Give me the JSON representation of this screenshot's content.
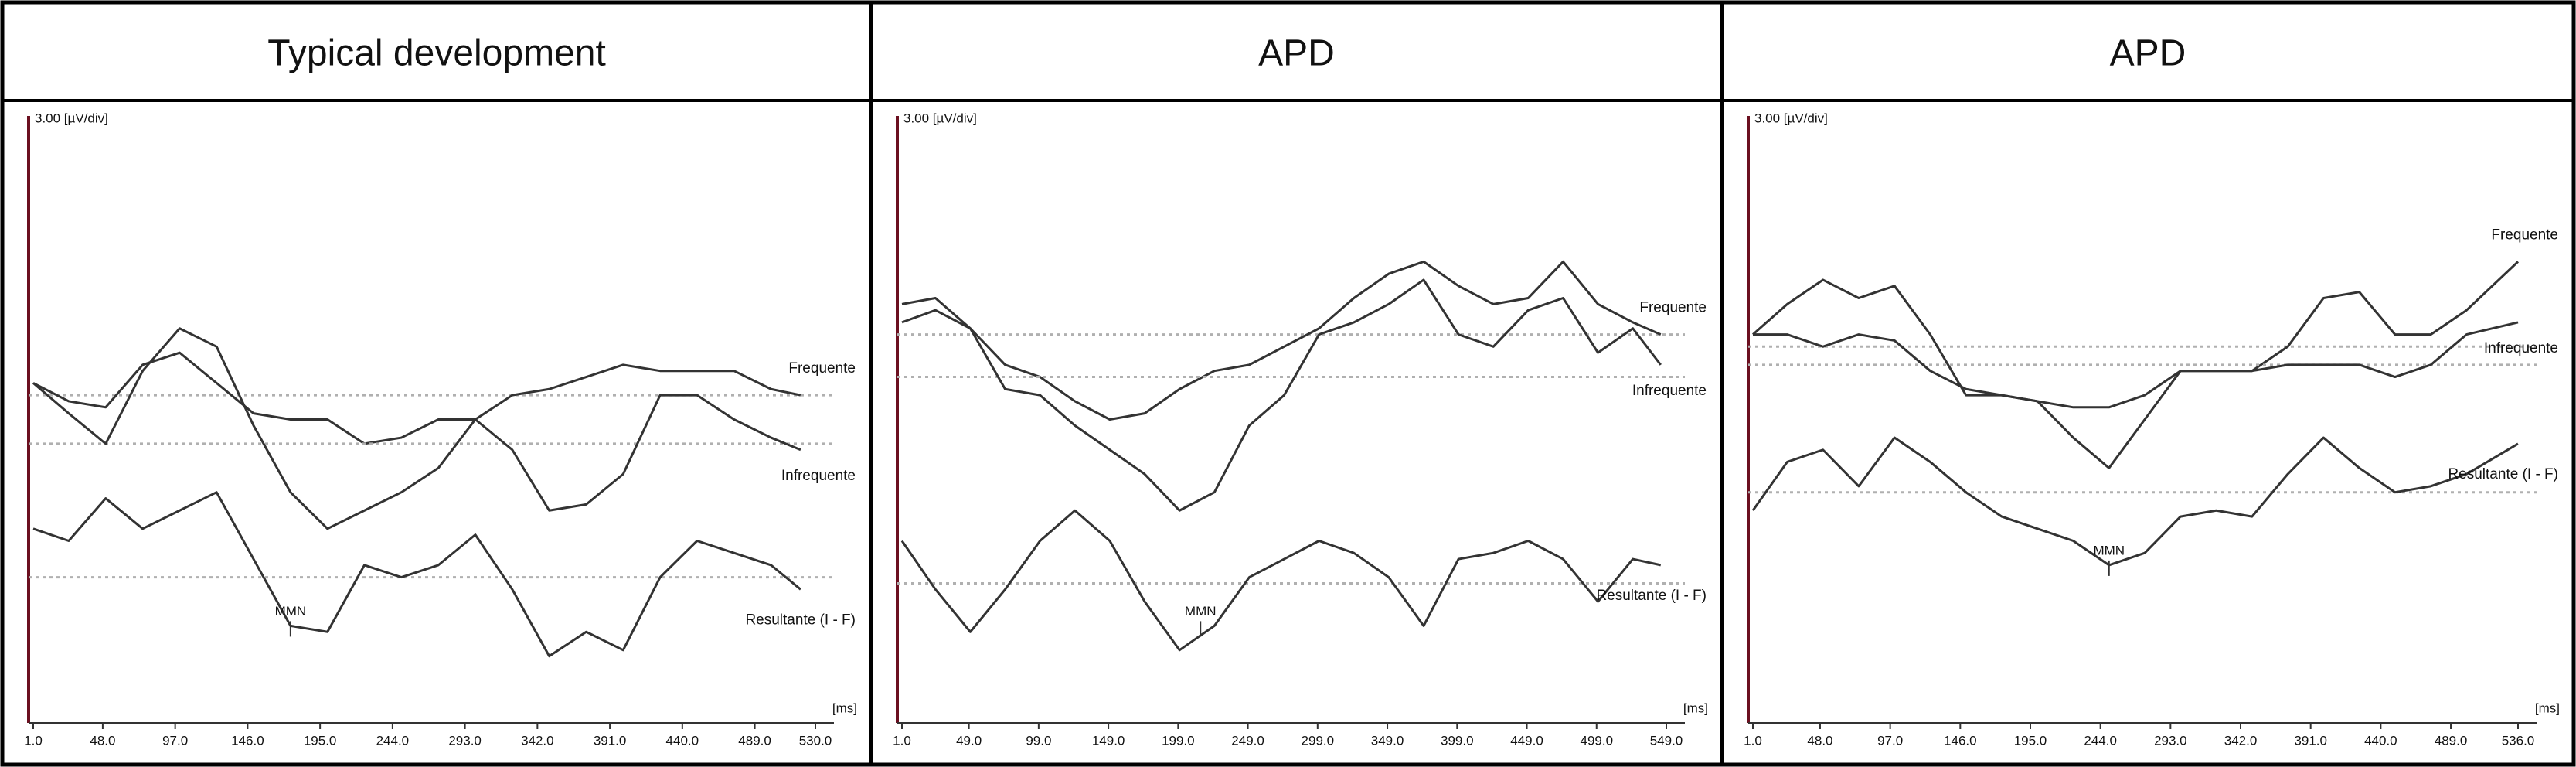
{
  "chart_data": [
    {
      "type": "line",
      "title": "Typical development",
      "y_unit": "3.00 [µV/div]",
      "x_unit": "[ms]",
      "x": [
        1,
        25,
        50,
        75,
        100,
        125,
        150,
        175,
        200,
        225,
        250,
        275,
        300,
        325,
        350,
        375,
        400,
        425,
        450,
        475,
        500,
        520
      ],
      "xlim": [
        1,
        530
      ],
      "xticks": [
        {
          "value": 1,
          "label": "1.0"
        },
        {
          "value": 48,
          "label": "48.0"
        },
        {
          "value": 97,
          "label": "97.0"
        },
        {
          "value": 146,
          "label": "146.0"
        },
        {
          "value": 195,
          "label": "195.0"
        },
        {
          "value": 244,
          "label": "244.0"
        },
        {
          "value": 293,
          "label": "293.0"
        },
        {
          "value": 342,
          "label": "342.0"
        },
        {
          "value": 391,
          "label": "391.0"
        },
        {
          "value": 440,
          "label": "440.0"
        },
        {
          "value": 489,
          "label": "489.0"
        },
        {
          "value": 530,
          "label": "530.0"
        }
      ],
      "ylim": [
        0,
        10
      ],
      "series": [
        {
          "name": "Frequente",
          "color": "#333333",
          "baseline": 5.4,
          "values": [
            5.6,
            5.3,
            5.2,
            5.9,
            6.1,
            5.6,
            5.1,
            5.0,
            5.0,
            4.6,
            4.7,
            5.0,
            5.0,
            5.4,
            5.5,
            5.7,
            5.9,
            5.8,
            5.8,
            5.8,
            5.5,
            5.4
          ]
        },
        {
          "name": "Infrequente",
          "color": "#333333",
          "baseline": 4.6,
          "values": [
            5.6,
            5.1,
            4.6,
            5.8,
            6.5,
            6.2,
            4.9,
            3.8,
            3.2,
            3.5,
            3.8,
            4.2,
            5.0,
            4.5,
            3.5,
            3.6,
            4.1,
            5.4,
            5.4,
            5.0,
            4.7,
            4.5
          ]
        },
        {
          "name": "Resultante (I - F)",
          "color": "#333333",
          "baseline": 2.4,
          "values": [
            3.2,
            3.0,
            3.7,
            3.2,
            3.5,
            3.8,
            2.7,
            1.6,
            1.5,
            2.6,
            2.4,
            2.6,
            3.1,
            2.2,
            1.1,
            1.5,
            1.2,
            2.4,
            3.0,
            2.8,
            2.6,
            2.2
          ]
        }
      ],
      "annotations": [
        {
          "text": "MMN",
          "x": 175
        }
      ]
    },
    {
      "type": "line",
      "title": "APD",
      "y_unit": "3.00 [µV/div]",
      "x_unit": "[ms]",
      "x": [
        1,
        25,
        50,
        75,
        100,
        125,
        150,
        175,
        200,
        225,
        250,
        275,
        300,
        325,
        350,
        375,
        400,
        425,
        450,
        475,
        500,
        525,
        545
      ],
      "xlim": [
        1,
        549
      ],
      "xticks": [
        {
          "value": 1,
          "label": "1.0"
        },
        {
          "value": 49,
          "label": "49.0"
        },
        {
          "value": 99,
          "label": "99.0"
        },
        {
          "value": 149,
          "label": "149.0"
        },
        {
          "value": 199,
          "label": "199.0"
        },
        {
          "value": 249,
          "label": "249.0"
        },
        {
          "value": 299,
          "label": "299.0"
        },
        {
          "value": 349,
          "label": "349.0"
        },
        {
          "value": 399,
          "label": "399.0"
        },
        {
          "value": 449,
          "label": "449.0"
        },
        {
          "value": 499,
          "label": "499.0"
        },
        {
          "value": 549,
          "label": "549.0"
        }
      ],
      "ylim": [
        0,
        10
      ],
      "series": [
        {
          "name": "Frequente",
          "color": "#333333",
          "baseline": 6.4,
          "values": [
            6.6,
            6.8,
            6.5,
            5.9,
            5.7,
            5.3,
            5.0,
            5.1,
            5.5,
            5.8,
            5.9,
            6.2,
            6.5,
            7.0,
            7.4,
            7.6,
            7.2,
            6.9,
            7.0,
            7.6,
            6.9,
            6.6,
            6.4
          ]
        },
        {
          "name": "Infrequente",
          "color": "#333333",
          "baseline": 5.7,
          "values": [
            6.9,
            7.0,
            6.5,
            5.5,
            5.4,
            4.9,
            4.5,
            4.1,
            3.5,
            3.8,
            4.9,
            5.4,
            6.4,
            6.6,
            6.9,
            7.3,
            6.4,
            6.2,
            6.8,
            7.0,
            6.1,
            6.5,
            5.9
          ]
        },
        {
          "name": "Resultante (I - F)",
          "color": "#333333",
          "baseline": 2.3,
          "values": [
            3.0,
            2.2,
            1.5,
            2.2,
            3.0,
            3.5,
            3.0,
            2.0,
            1.2,
            1.6,
            2.4,
            2.7,
            3.0,
            2.8,
            2.4,
            1.6,
            2.7,
            2.8,
            3.0,
            2.7,
            2.0,
            2.7,
            2.6
          ]
        }
      ],
      "annotations": [
        {
          "text": "MMN",
          "x": 215
        }
      ]
    },
    {
      "type": "line",
      "title": "APD",
      "y_unit": "3.00 [µV/div]",
      "x_unit": "[ms]",
      "x": [
        1,
        25,
        50,
        75,
        100,
        125,
        150,
        175,
        200,
        225,
        250,
        275,
        300,
        325,
        350,
        375,
        400,
        425,
        450,
        475,
        500,
        536
      ],
      "xlim": [
        1,
        536
      ],
      "xticks": [
        {
          "value": 1,
          "label": "1.0"
        },
        {
          "value": 48,
          "label": "48.0"
        },
        {
          "value": 97,
          "label": "97.0"
        },
        {
          "value": 146,
          "label": "146.0"
        },
        {
          "value": 195,
          "label": "195.0"
        },
        {
          "value": 244,
          "label": "244.0"
        },
        {
          "value": 293,
          "label": "293.0"
        },
        {
          "value": 342,
          "label": "342.0"
        },
        {
          "value": 391,
          "label": "391.0"
        },
        {
          "value": 440,
          "label": "440.0"
        },
        {
          "value": 489,
          "label": "489.0"
        },
        {
          "value": 536,
          "label": "536.0"
        }
      ],
      "ylim": [
        0,
        10
      ],
      "series": [
        {
          "name": "Frequente",
          "color": "#333333",
          "baseline": 6.2,
          "values": [
            6.4,
            6.9,
            7.3,
            7.0,
            7.2,
            6.4,
            5.4,
            5.4,
            5.3,
            4.7,
            4.2,
            5.0,
            5.8,
            5.8,
            5.8,
            6.2,
            7.0,
            7.1,
            6.4,
            6.4,
            6.8,
            7.6
          ]
        },
        {
          "name": "Infrequente",
          "color": "#333333",
          "baseline": 5.9,
          "values": [
            6.4,
            6.4,
            6.2,
            6.4,
            6.3,
            5.8,
            5.5,
            5.4,
            5.3,
            5.2,
            5.2,
            5.4,
            5.8,
            5.8,
            5.8,
            5.9,
            5.9,
            5.9,
            5.7,
            5.9,
            6.4,
            6.6
          ]
        },
        {
          "name": "Resultante (I - F)",
          "color": "#333333",
          "baseline": 3.8,
          "values": [
            3.5,
            4.3,
            4.5,
            3.9,
            4.7,
            4.3,
            3.8,
            3.4,
            3.2,
            3.0,
            2.6,
            2.8,
            3.4,
            3.5,
            3.4,
            4.1,
            4.7,
            4.2,
            3.8,
            3.9,
            4.1,
            4.6
          ]
        }
      ],
      "annotations": [
        {
          "text": "MMN",
          "x": 250
        }
      ]
    }
  ]
}
